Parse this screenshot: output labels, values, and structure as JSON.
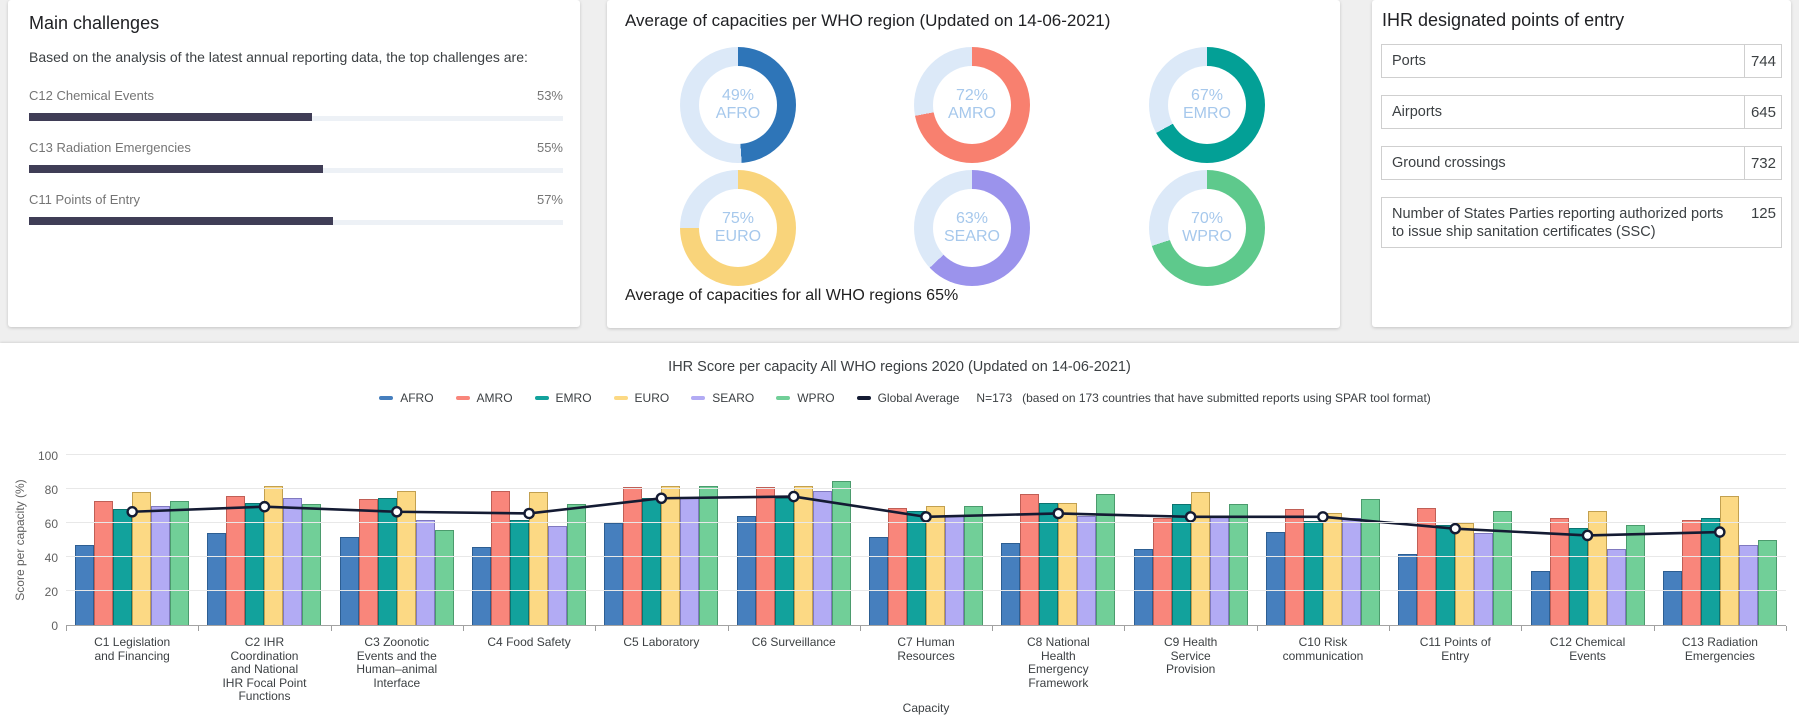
{
  "page": {
    "background": "#efefef"
  },
  "cards": {
    "challenges": {
      "title": "Main challenges",
      "subtitle": "Based on the analysis of the latest annual reporting data, the top challenges are:"
    },
    "capacities": {
      "title": "Average of capacities per WHO region (Updated on 14-06-2021)",
      "footer": "Average of capacities for all WHO regions 65%"
    },
    "points_of_entry": {
      "title": "IHR designated points of entry"
    }
  },
  "chart_data": [
    {
      "id": "score-per-capacity",
      "type": "bar",
      "title": "IHR Score per capacity All WHO regions 2020 (Updated on 14-06-2021)",
      "xlabel": "Capacity",
      "ylabel": "Score per capacity (%)",
      "ylim": [
        0,
        100
      ],
      "yticks": [
        0,
        20,
        40,
        60,
        80,
        100
      ],
      "grid": true,
      "legend_position": "top",
      "categories": [
        "C1 Legislation\nand Financing",
        "C2 IHR\nCoordination\nand National\nIHR Focal Point\nFunctions",
        "C3 Zoonotic\nEvents and the\nHuman–animal\nInterface",
        "C4 Food Safety",
        "C5 Laboratory",
        "C6 Surveillance",
        "C7 Human\nResources",
        "C8 National\nHealth\nEmergency\nFramework",
        "C9 Health\nService\nProvision",
        "C10 Risk\ncommunication",
        "C11 Points of\nEntry",
        "C12 Chemical\nEvents",
        "C13 Radiation\nEmergencies"
      ],
      "series": [
        {
          "name": "AFRO",
          "color": "#467fbe",
          "border": "#2d5e92",
          "values": [
            47,
            54,
            52,
            46,
            60,
            64,
            52,
            48,
            45,
            55,
            42,
            32,
            32
          ]
        },
        {
          "name": "AMRO",
          "color": "#f9867b",
          "border": "#c05f56",
          "values": [
            73,
            76,
            74,
            79,
            81,
            81,
            69,
            77,
            63,
            68,
            69,
            63,
            62
          ]
        },
        {
          "name": "EMRO",
          "color": "#12a29c",
          "border": "#0b7470",
          "values": [
            68,
            72,
            75,
            62,
            75,
            75,
            67,
            72,
            71,
            61,
            59,
            57,
            63
          ]
        },
        {
          "name": "EURO",
          "color": "#fcd984",
          "border": "#c2a050",
          "values": [
            78,
            82,
            79,
            78,
            82,
            82,
            70,
            72,
            78,
            66,
            60,
            67,
            76
          ]
        },
        {
          "name": "SEARO",
          "color": "#b2abf4",
          "border": "#8079bf",
          "values": [
            70,
            75,
            62,
            58,
            75,
            79,
            64,
            64,
            64,
            63,
            54,
            45,
            47
          ]
        },
        {
          "name": "WPRO",
          "color": "#71cf98",
          "border": "#4b9b6d",
          "values": [
            73,
            71,
            56,
            71,
            82,
            85,
            70,
            77,
            71,
            74,
            67,
            59,
            50
          ]
        }
      ],
      "line_series": {
        "name": "Global Average",
        "color": "#141b33",
        "values": [
          67,
          70,
          67,
          66,
          75,
          76,
          64,
          66,
          64,
          64,
          57,
          53,
          55
        ]
      },
      "legend_extra": [
        "N=173",
        "(based on 173 countries that have submitted reports using SPAR tool format)"
      ]
    },
    {
      "id": "capacity-donuts",
      "type": "pie",
      "track_color": "#dce9f8",
      "label_color": "#a6c8ec",
      "donuts": [
        {
          "label": "AFRO",
          "percent": 49,
          "color": "#2e75b8"
        },
        {
          "label": "AMRO",
          "percent": 72,
          "color": "#f8806f"
        },
        {
          "label": "EMRO",
          "percent": 67,
          "color": "#03a096"
        },
        {
          "label": "EURO",
          "percent": 75,
          "color": "#f9d47b"
        },
        {
          "label": "SEARO",
          "percent": 63,
          "color": "#9b93ec"
        },
        {
          "label": "WPRO",
          "percent": 70,
          "color": "#5ec98c"
        }
      ]
    },
    {
      "id": "main-challenges",
      "type": "bar",
      "orientation": "horizontal",
      "xlim": [
        0,
        100
      ],
      "bar_color": "#3f3d56",
      "track_color": "#edf1f6",
      "categories": [
        "C12 Chemical Events",
        "C13 Radiation Emergencies",
        "C11 Points of Entry"
      ],
      "values": [
        53,
        55,
        57
      ],
      "value_labels": [
        "53%",
        "55%",
        "57%"
      ]
    },
    {
      "id": "points-of-entry",
      "type": "table",
      "rows": [
        {
          "label": "Ports",
          "value": "744"
        },
        {
          "label": "Airports",
          "value": "645"
        },
        {
          "label": "Ground crossings",
          "value": "732"
        },
        {
          "label": "Number of States Parties reporting authorized ports to issue ship sanitation certificates (SSC)",
          "value": "125"
        }
      ]
    }
  ]
}
